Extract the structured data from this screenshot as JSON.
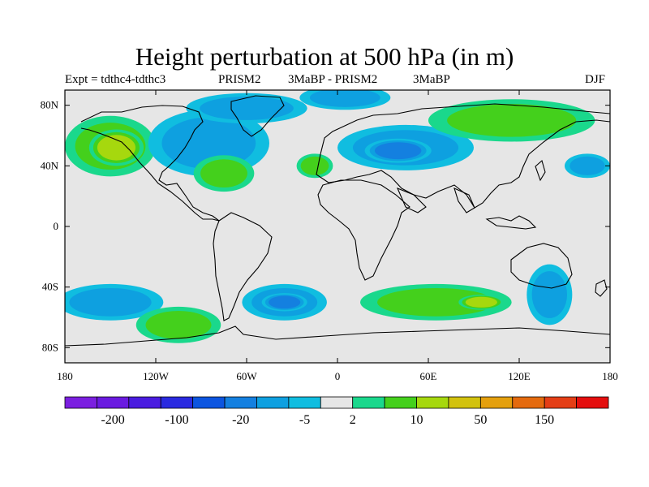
{
  "title": "Height perturbation at 500 hPa (in m)",
  "subtitle": {
    "left": "Expt = tdthc4-tdthc3",
    "mid1": "PRISM2",
    "mid2": "3MaBP - PRISM2",
    "mid3": "3MaBP",
    "right": "DJF"
  },
  "map": {
    "projection": "cylindrical equidistant",
    "lon_range": [
      -180,
      180
    ],
    "lat_range": [
      -90,
      90
    ],
    "background_color": "#e6e6e6",
    "coastline_color": "#000000",
    "x_ticks": [
      {
        "value": -180,
        "label": "180"
      },
      {
        "value": -120,
        "label": "120W"
      },
      {
        "value": -60,
        "label": "60W"
      },
      {
        "value": 0,
        "label": "0"
      },
      {
        "value": 60,
        "label": "60E"
      },
      {
        "value": 120,
        "label": "120E"
      },
      {
        "value": 180,
        "label": "180"
      }
    ],
    "y_ticks": [
      {
        "value": 80,
        "label": "80N"
      },
      {
        "value": 40,
        "label": "40N"
      },
      {
        "value": 0,
        "label": "0"
      },
      {
        "value": -40,
        "label": "40S"
      },
      {
        "value": -80,
        "label": "80S"
      }
    ]
  },
  "colorbar": {
    "colors": [
      "#7b1fe0",
      "#6a1ae0",
      "#4a1ce0",
      "#2a2ae0",
      "#0c55e0",
      "#1480e0",
      "#0ea0e0",
      "#10bde0",
      "#e6e6e6",
      "#1ad88c",
      "#44d01c",
      "#a6d80e",
      "#d2c20e",
      "#e4a00e",
      "#e46a0e",
      "#e43e16",
      "#e40e0e"
    ],
    "labels": [
      "-200",
      "-100",
      "-20",
      "-5",
      "2",
      "10",
      "50",
      "150"
    ]
  },
  "regions": [
    {
      "name": "north-pacific-pos",
      "lon": -150,
      "lat": 53,
      "rx": 30,
      "ry": 20,
      "level": 10
    },
    {
      "name": "north-pacific-pos-core",
      "lon": -146,
      "lat": 52,
      "rx": 18,
      "ry": 12,
      "level": 50
    },
    {
      "name": "north-america-neg",
      "lon": -85,
      "lat": 55,
      "rx": 40,
      "ry": 22,
      "level": -5
    },
    {
      "name": "east-us-pos",
      "lon": -75,
      "lat": 35,
      "rx": 20,
      "ry": 12,
      "level": 10
    },
    {
      "name": "arctic-neg",
      "lon": -60,
      "lat": 78,
      "rx": 40,
      "ry": 10,
      "level": -5
    },
    {
      "name": "europe-neg",
      "lon": 5,
      "lat": 85,
      "rx": 30,
      "ry": 8,
      "level": -5
    },
    {
      "name": "asia-neg",
      "lon": 45,
      "lat": 52,
      "rx": 45,
      "ry": 15,
      "level": -5
    },
    {
      "name": "asia-neg-core",
      "lon": 40,
      "lat": 50,
      "rx": 22,
      "ry": 8,
      "level": -20
    },
    {
      "name": "north-africa-pos",
      "lon": -15,
      "lat": 40,
      "rx": 12,
      "ry": 8,
      "level": 10
    },
    {
      "name": "siberia-pos",
      "lon": 115,
      "lat": 70,
      "rx": 55,
      "ry": 14,
      "level": 10
    },
    {
      "name": "west-pacific-neg",
      "lon": 165,
      "lat": 40,
      "rx": 15,
      "ry": 8,
      "level": -5
    },
    {
      "name": "south-pacific-neg",
      "lon": -150,
      "lat": -50,
      "rx": 35,
      "ry": 12,
      "level": -5
    },
    {
      "name": "south-america-pos",
      "lon": -105,
      "lat": -65,
      "rx": 28,
      "ry": 12,
      "level": 10
    },
    {
      "name": "south-atlantic-neg",
      "lon": -35,
      "lat": -50,
      "rx": 28,
      "ry": 12,
      "level": -5
    },
    {
      "name": "south-atlantic-neg-core",
      "lon": -35,
      "lat": -50,
      "rx": 15,
      "ry": 6,
      "level": -20
    },
    {
      "name": "indian-ocean-pos",
      "lon": 65,
      "lat": -50,
      "rx": 50,
      "ry": 12,
      "level": 10
    },
    {
      "name": "indian-ocean-pos-core",
      "lon": 95,
      "lat": -50,
      "rx": 15,
      "ry": 5,
      "level": 50
    },
    {
      "name": "australia-neg",
      "lon": 140,
      "lat": -45,
      "rx": 15,
      "ry": 20,
      "level": -5
    }
  ]
}
